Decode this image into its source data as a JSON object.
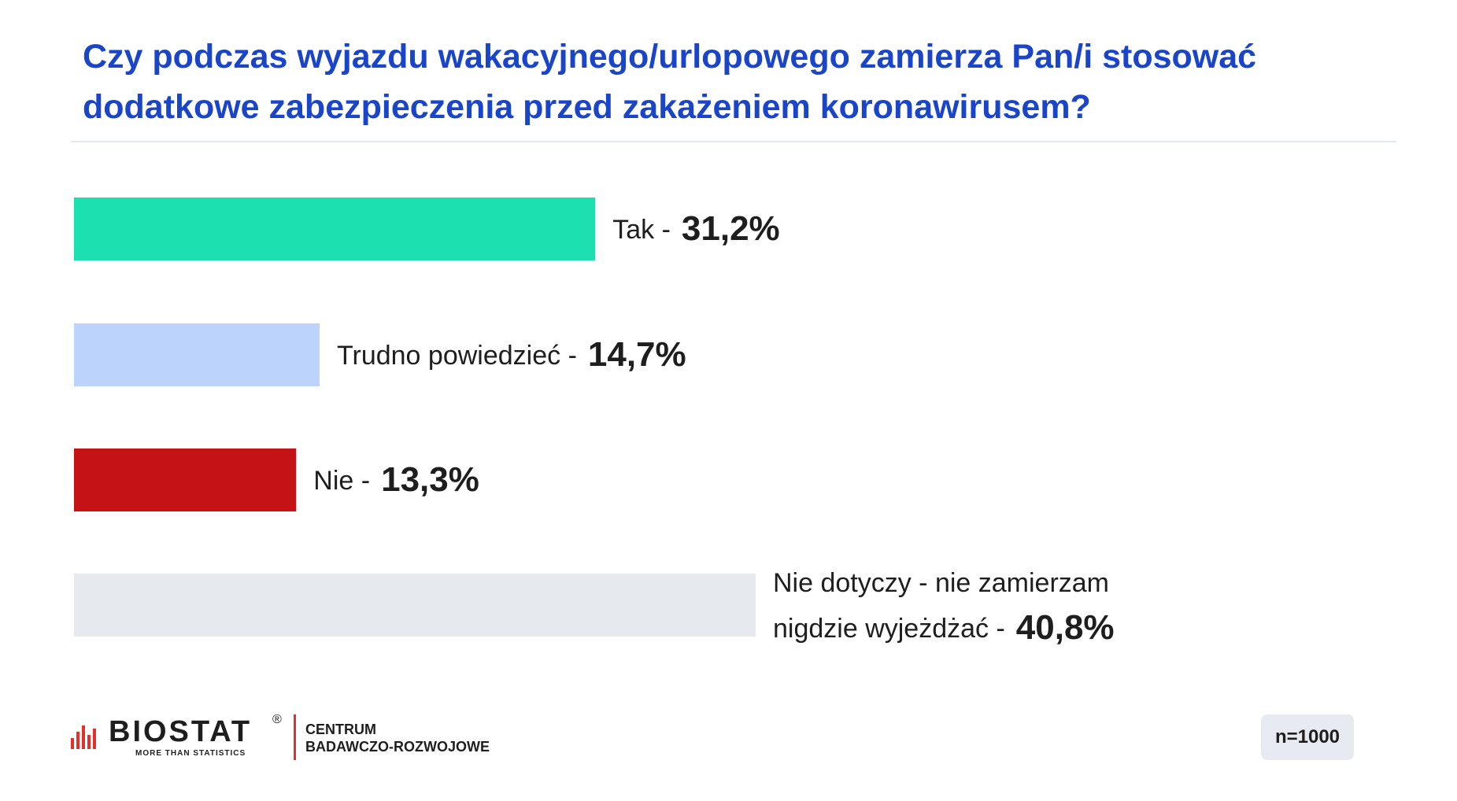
{
  "title": {
    "line1": "Czy podczas wyjazdu wakacyjnego/urlopowego zamierza Pan/i stosować",
    "line2": "dodatkowe zabezpieczenia przed zakażeniem koronawirusem?"
  },
  "chart_data": {
    "type": "bar",
    "orientation": "horizontal",
    "title": "Czy podczas wyjazdu wakacyjnego/urlopowego zamierza Pan/i stosować dodatkowe zabezpieczenia przed zakażeniem koronawirusem?",
    "unit": "%",
    "categories": [
      "Tak",
      "Trudno powiedzieć",
      "Nie",
      "Nie dotyczy - nie zamierzam nigdzie wyjeżdżać"
    ],
    "label_lines": [
      [
        "Tak -"
      ],
      [
        "Trudno powiedzieć -"
      ],
      [
        "Nie -"
      ],
      [
        "Nie dotyczy -  nie zamierzam",
        "nigdzie wyjeżdżać -"
      ]
    ],
    "values": [
      31.2,
      14.7,
      13.3,
      40.8
    ],
    "value_labels": [
      "31,2%",
      "14,7%",
      "13,3%",
      "40,8%"
    ],
    "colors": [
      "#1de0b0",
      "#bcd3fb",
      "#c41217",
      "#e6e9ee"
    ],
    "xlim": [
      0,
      40.8
    ],
    "grid": false,
    "legend": "none"
  },
  "footer": {
    "logo_text": "BIOSTAT",
    "logo_reg": "®",
    "logo_tagline": "MORE THAN STATISTICS",
    "center_line1": "CENTRUM",
    "center_line2": "BADAWCZO-ROZWOJOWE",
    "logo_bar_color": "#e0322b",
    "sample": "n=1000"
  }
}
